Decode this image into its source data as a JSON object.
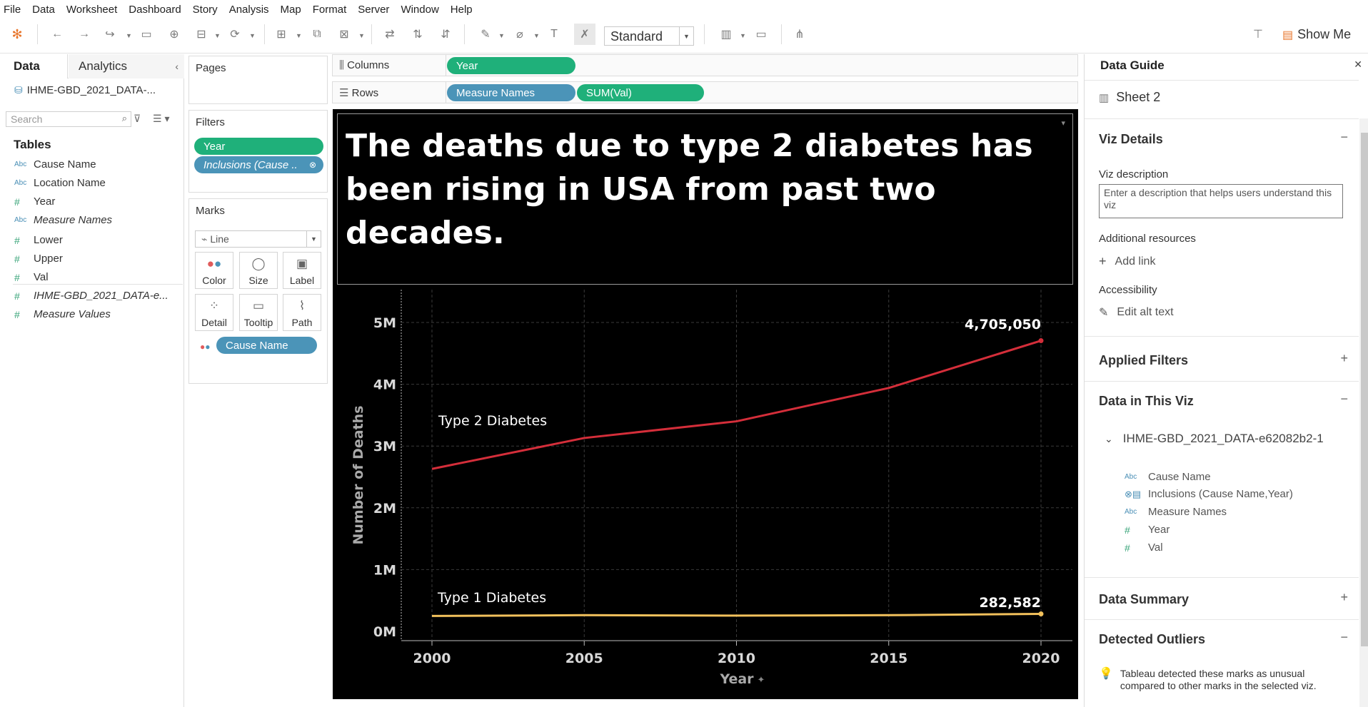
{
  "menu": [
    "File",
    "Data",
    "Worksheet",
    "Dashboard",
    "Story",
    "Analysis",
    "Map",
    "Format",
    "Server",
    "Window",
    "Help"
  ],
  "toolbar": {
    "fit_select": "Standard",
    "show_me": "Show Me"
  },
  "left_pane": {
    "tab_data": "Data",
    "tab_analytics": "Analytics",
    "datasource": "IHME-GBD_2021_DATA-...",
    "search_placeholder": "Search",
    "tables_heading": "Tables",
    "fields": [
      {
        "type": "Abc",
        "name": "Cause Name"
      },
      {
        "type": "Abc",
        "name": "Location Name"
      },
      {
        "type": "#",
        "name": "Year"
      },
      {
        "type": "Abc",
        "name": "Measure Names"
      },
      {
        "type": "#",
        "name": "Lower"
      },
      {
        "type": "#",
        "name": "Upper"
      },
      {
        "type": "#",
        "name": "Val"
      },
      {
        "type": "#",
        "name": "IHME-GBD_2021_DATA-e..."
      },
      {
        "type": "#",
        "name": "Measure Values"
      }
    ]
  },
  "pages": {
    "heading": "Pages"
  },
  "filters": {
    "heading": "Filters",
    "pill_year": "Year",
    "pill_inclusions": "Inclusions (Cause .."
  },
  "marks": {
    "heading": "Marks",
    "type": "Line",
    "buttons": [
      "Color",
      "Size",
      "Label",
      "Detail",
      "Tooltip",
      "Path"
    ],
    "pill_cause": "Cause Name"
  },
  "shelves": {
    "columns_label": "Columns",
    "columns_pill": "Year",
    "rows_label": "Rows",
    "rows_pill_1": "Measure Names",
    "rows_pill_2": "SUM(Val)"
  },
  "viz": {
    "title": "The deaths due to type 2 diabetes has been rising in USA from past two decades."
  },
  "chart_data": {
    "type": "line",
    "x": [
      2000,
      2005,
      2010,
      2015,
      2020
    ],
    "series": [
      {
        "name": "Type 2 Diabetes",
        "values": [
          2630000,
          3130000,
          3400000,
          3940000,
          4705050
        ],
        "color": "#d42e3a",
        "end_label": "4,705,050"
      },
      {
        "name": "Type 1 Diabetes",
        "values": [
          250000,
          262000,
          255000,
          262000,
          282582
        ],
        "color": "#f2c15c",
        "end_label": "282,582"
      }
    ],
    "xlabel": "Year",
    "ylabel": "Number of Deaths",
    "yticks": [
      "0M",
      "1M",
      "2M",
      "3M",
      "4M",
      "5M"
    ],
    "xticks": [
      "2000",
      "2005",
      "2010",
      "2015",
      "2020"
    ],
    "ylim": [
      0,
      5500000
    ],
    "grid": true
  },
  "guide": {
    "heading": "Data Guide",
    "sheet": "Sheet 2",
    "viz_details": "Viz Details",
    "viz_description": "Viz description",
    "desc_placeholder": "Enter a description that helps users understand this viz",
    "additional_resources": "Additional resources",
    "add_link": "Add link",
    "accessibility": "Accessibility",
    "edit_alt": "Edit alt text",
    "applied_filters": "Applied Filters",
    "data_in_viz": "Data in This Viz",
    "datasource": "IHME-GBD_2021_DATA-e62082b2-1",
    "fields": [
      {
        "type": "Abc",
        "name": "Cause Name"
      },
      {
        "type": "link",
        "name": "Inclusions (Cause Name,Year)"
      },
      {
        "type": "Abc",
        "name": "Measure Names"
      },
      {
        "type": "#",
        "name": "Year"
      },
      {
        "type": "#",
        "name": "Val"
      }
    ],
    "data_summary": "Data Summary",
    "detected_outliers": "Detected Outliers",
    "outlier_text": "Tableau detected these marks as unusual compared to other marks in the selected viz."
  }
}
